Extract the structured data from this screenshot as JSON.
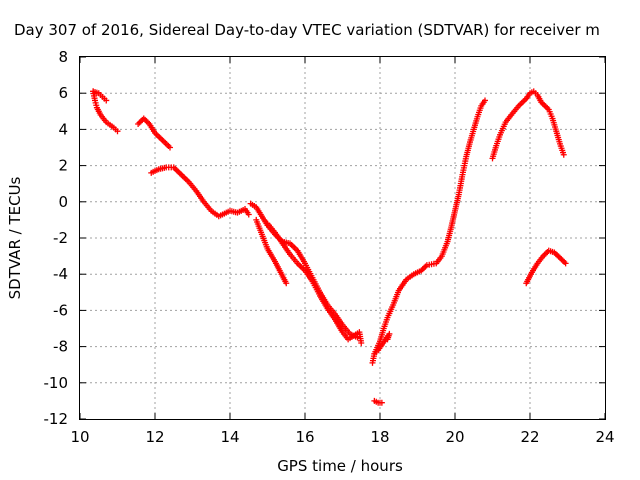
{
  "chart_data": {
    "type": "scatter",
    "title": "Day 307 of 2016, Sidereal Day-to-day VTEC variation (SDTVAR) for receiver m",
    "xlabel": "GPS time / hours",
    "ylabel": "SDTVAR / TECUs",
    "xlim": [
      10,
      24
    ],
    "ylim": [
      -12,
      8
    ],
    "xticks": [
      "10",
      "12",
      "14",
      "16",
      "18",
      "20",
      "22",
      "24"
    ],
    "yticks": [
      "8",
      "6",
      "4",
      "2",
      "0",
      "-2",
      "-4",
      "-6",
      "-8",
      "-10",
      "-12"
    ],
    "grid": true,
    "marker": "plus",
    "color": "#ff0000",
    "segments": [
      {
        "name": "arc-1",
        "points": [
          [
            10.35,
            6.1
          ],
          [
            10.4,
            5.6
          ],
          [
            10.45,
            5.2
          ],
          [
            10.55,
            4.8
          ],
          [
            10.7,
            4.4
          ],
          [
            10.9,
            4.1
          ],
          [
            11.0,
            3.9
          ]
        ]
      },
      {
        "name": "arc-2",
        "points": [
          [
            10.35,
            6.1
          ],
          [
            10.5,
            6.0
          ],
          [
            10.6,
            5.8
          ],
          [
            10.7,
            5.6
          ]
        ]
      },
      {
        "name": "arc-3",
        "points": [
          [
            11.55,
            4.3
          ],
          [
            11.7,
            4.6
          ],
          [
            11.85,
            4.3
          ],
          [
            12.0,
            3.8
          ],
          [
            12.2,
            3.4
          ],
          [
            12.4,
            3.0
          ]
        ]
      },
      {
        "name": "arc-4",
        "points": [
          [
            11.9,
            1.6
          ],
          [
            12.1,
            1.8
          ],
          [
            12.3,
            1.9
          ],
          [
            12.5,
            1.9
          ],
          [
            12.7,
            1.5
          ],
          [
            12.9,
            1.1
          ],
          [
            13.1,
            0.6
          ],
          [
            13.3,
            0.0
          ],
          [
            13.5,
            -0.5
          ],
          [
            13.7,
            -0.8
          ],
          [
            13.9,
            -0.6
          ],
          [
            14.0,
            -0.5
          ],
          [
            14.2,
            -0.6
          ],
          [
            14.4,
            -0.4
          ],
          [
            14.5,
            -0.7
          ]
        ]
      },
      {
        "name": "arc-5",
        "points": [
          [
            14.55,
            -0.1
          ],
          [
            14.7,
            -0.3
          ],
          [
            14.85,
            -0.8
          ],
          [
            15.0,
            -1.3
          ],
          [
            15.2,
            -1.8
          ],
          [
            15.4,
            -2.2
          ],
          [
            15.6,
            -2.3
          ],
          [
            15.8,
            -2.7
          ],
          [
            16.0,
            -3.4
          ],
          [
            16.2,
            -4.2
          ],
          [
            16.4,
            -5.0
          ],
          [
            16.6,
            -5.7
          ],
          [
            16.8,
            -6.2
          ],
          [
            17.0,
            -6.8
          ],
          [
            17.2,
            -7.3
          ],
          [
            17.4,
            -7.5
          ]
        ]
      },
      {
        "name": "arc-6",
        "points": [
          [
            14.7,
            -1.0
          ],
          [
            14.85,
            -1.8
          ],
          [
            15.0,
            -2.6
          ],
          [
            15.2,
            -3.3
          ],
          [
            15.35,
            -3.9
          ],
          [
            15.5,
            -4.5
          ]
        ]
      },
      {
        "name": "arc-7",
        "points": [
          [
            15.0,
            -1.2
          ],
          [
            15.2,
            -1.7
          ],
          [
            15.4,
            -2.3
          ],
          [
            15.6,
            -2.9
          ],
          [
            15.8,
            -3.4
          ],
          [
            16.0,
            -3.8
          ],
          [
            16.2,
            -4.4
          ],
          [
            16.4,
            -5.2
          ],
          [
            16.6,
            -5.9
          ],
          [
            16.8,
            -6.5
          ],
          [
            17.0,
            -7.2
          ],
          [
            17.15,
            -7.6
          ],
          [
            17.3,
            -7.4
          ],
          [
            17.45,
            -7.2
          ],
          [
            17.5,
            -7.8
          ]
        ]
      },
      {
        "name": "arc-8",
        "points": [
          [
            17.8,
            -8.9
          ],
          [
            17.85,
            -8.4
          ],
          [
            17.95,
            -8.2
          ],
          [
            18.05,
            -7.9
          ],
          [
            18.15,
            -7.6
          ],
          [
            18.25,
            -7.3
          ],
          [
            18.2,
            -7.6
          ]
        ]
      },
      {
        "name": "arc-9",
        "points": [
          [
            17.85,
            -11.0
          ],
          [
            17.95,
            -11.1
          ],
          [
            18.05,
            -11.1
          ]
        ]
      },
      {
        "name": "arc-10",
        "points": [
          [
            17.85,
            -8.4
          ],
          [
            18.0,
            -7.7
          ],
          [
            18.1,
            -7.0
          ],
          [
            18.2,
            -6.4
          ],
          [
            18.35,
            -5.7
          ],
          [
            18.5,
            -4.9
          ],
          [
            18.7,
            -4.3
          ],
          [
            18.9,
            -4.0
          ],
          [
            19.1,
            -3.8
          ],
          [
            19.25,
            -3.5
          ],
          [
            19.5,
            -3.4
          ],
          [
            19.65,
            -3.0
          ],
          [
            19.8,
            -2.2
          ],
          [
            19.9,
            -1.4
          ],
          [
            20.0,
            -0.5
          ],
          [
            20.1,
            0.4
          ],
          [
            20.2,
            1.5
          ],
          [
            20.3,
            2.5
          ],
          [
            20.4,
            3.3
          ],
          [
            20.5,
            4.0
          ],
          [
            20.6,
            4.7
          ],
          [
            20.7,
            5.3
          ],
          [
            20.8,
            5.6
          ]
        ]
      },
      {
        "name": "arc-11",
        "points": [
          [
            21.0,
            2.4
          ],
          [
            21.1,
            3.1
          ],
          [
            21.2,
            3.7
          ],
          [
            21.35,
            4.4
          ],
          [
            21.5,
            4.8
          ],
          [
            21.7,
            5.3
          ],
          [
            21.9,
            5.7
          ],
          [
            22.0,
            6.0
          ],
          [
            22.1,
            6.1
          ],
          [
            22.2,
            5.9
          ],
          [
            22.3,
            5.5
          ],
          [
            22.5,
            5.1
          ],
          [
            22.6,
            4.6
          ],
          [
            22.7,
            3.9
          ],
          [
            22.8,
            3.2
          ],
          [
            22.9,
            2.6
          ]
        ]
      },
      {
        "name": "arc-12",
        "points": [
          [
            21.9,
            -4.5
          ],
          [
            22.05,
            -3.9
          ],
          [
            22.2,
            -3.4
          ],
          [
            22.35,
            -3.0
          ],
          [
            22.5,
            -2.7
          ],
          [
            22.65,
            -2.8
          ],
          [
            22.8,
            -3.1
          ],
          [
            22.95,
            -3.4
          ]
        ]
      }
    ]
  }
}
